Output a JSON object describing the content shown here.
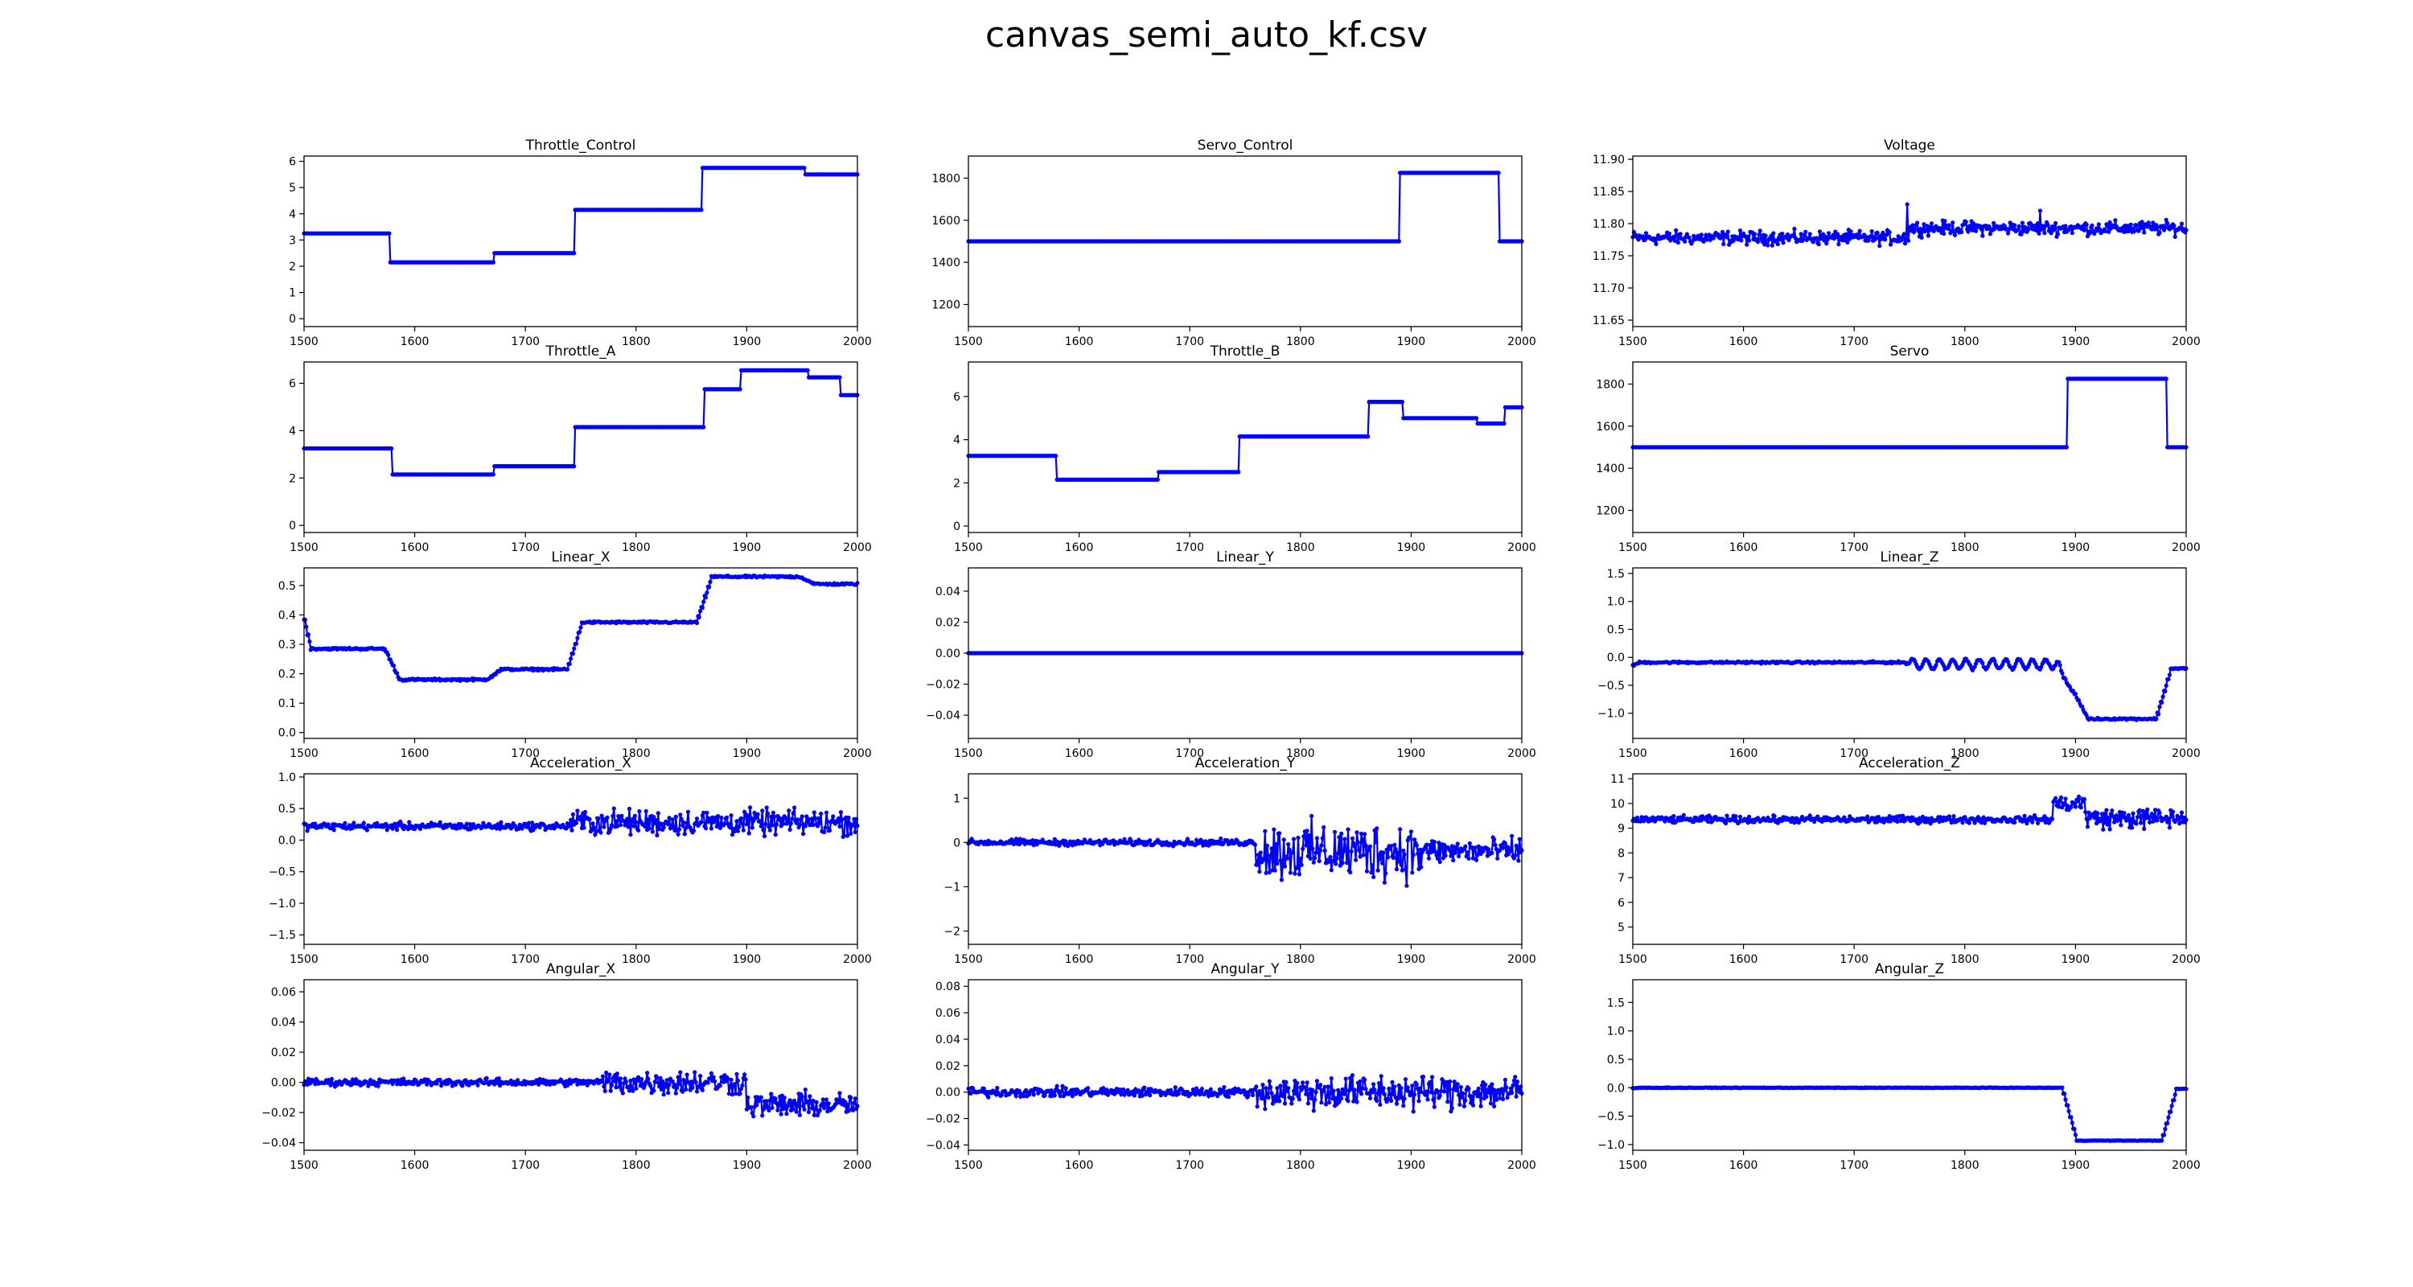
{
  "figure": {
    "title": "canvas_semi_auto_kf.csv"
  },
  "series_color": "#0000ff",
  "chart_data": [
    {
      "type": "line",
      "title": "Throttle_Control",
      "xlim": [
        1500,
        2000
      ],
      "ylim": [
        -0.3,
        6.2
      ],
      "xticks": [
        1500,
        1600,
        1700,
        1800,
        1900,
        2000
      ],
      "yticks": [
        0,
        1,
        2,
        3,
        4,
        5,
        6
      ],
      "ytick_labels": [
        "0",
        "1",
        "2",
        "3",
        "4",
        "5",
        "6"
      ],
      "segments": [
        [
          1500,
          1578,
          3.25
        ],
        [
          1578,
          1672,
          2.15
        ],
        [
          1672,
          1745,
          2.5
        ],
        [
          1745,
          1860,
          4.15
        ],
        [
          1860,
          1953,
          5.75
        ],
        [
          1953,
          2000,
          5.5
        ]
      ],
      "noise": 0,
      "kind": "step"
    },
    {
      "type": "line",
      "title": "Servo_Control",
      "xlim": [
        1500,
        2000
      ],
      "ylim": [
        1095,
        1905
      ],
      "xticks": [
        1500,
        1600,
        1700,
        1800,
        1900,
        2000
      ],
      "yticks": [
        1200,
        1400,
        1600,
        1800
      ],
      "ytick_labels": [
        "1200",
        "1400",
        "1600",
        "1800"
      ],
      "segments": [
        [
          1500,
          1890,
          1500
        ],
        [
          1890,
          1980,
          1825
        ],
        [
          1980,
          2000,
          1500
        ]
      ],
      "noise": 0,
      "kind": "step"
    },
    {
      "type": "line",
      "title": "Voltage",
      "xlim": [
        1500,
        2000
      ],
      "ylim": [
        11.64,
        11.905
      ],
      "xticks": [
        1500,
        1600,
        1700,
        1800,
        1900,
        2000
      ],
      "yticks": [
        11.65,
        11.7,
        11.75,
        11.8,
        11.85,
        11.9
      ],
      "ytick_labels": [
        "11.65",
        "11.70",
        "11.75",
        "11.80",
        "11.85",
        "11.90"
      ],
      "segments": [
        [
          1500,
          1750,
          11.778
        ],
        [
          1750,
          2000,
          11.793
        ]
      ],
      "noise": 0.009,
      "spikes": [
        [
          1748,
          11.83
        ],
        [
          1868,
          11.82
        ]
      ],
      "kind": "noisy"
    },
    {
      "type": "line",
      "title": "Throttle_A",
      "xlim": [
        1500,
        2000
      ],
      "ylim": [
        -0.3,
        6.9
      ],
      "xticks": [
        1500,
        1600,
        1700,
        1800,
        1900,
        2000
      ],
      "yticks": [
        0,
        2,
        4,
        6
      ],
      "ytick_labels": [
        "0",
        "2",
        "4",
        "6"
      ],
      "segments": [
        [
          1500,
          1580,
          3.25
        ],
        [
          1580,
          1672,
          2.15
        ],
        [
          1672,
          1745,
          2.5
        ],
        [
          1745,
          1862,
          4.15
        ],
        [
          1862,
          1895,
          5.75
        ],
        [
          1895,
          1956,
          6.55
        ],
        [
          1956,
          1985,
          6.25
        ],
        [
          1985,
          2000,
          5.5
        ]
      ],
      "noise": 0,
      "kind": "step"
    },
    {
      "type": "line",
      "title": "Throttle_B",
      "xlim": [
        1500,
        2000
      ],
      "ylim": [
        -0.3,
        7.6
      ],
      "xticks": [
        1500,
        1600,
        1700,
        1800,
        1900,
        2000
      ],
      "yticks": [
        0,
        2,
        4,
        6
      ],
      "ytick_labels": [
        "0",
        "2",
        "4",
        "6"
      ],
      "segments": [
        [
          1500,
          1580,
          3.25
        ],
        [
          1580,
          1672,
          2.15
        ],
        [
          1672,
          1745,
          2.5
        ],
        [
          1745,
          1862,
          4.15
        ],
        [
          1862,
          1893,
          5.75
        ],
        [
          1893,
          1960,
          5.0
        ],
        [
          1960,
          1985,
          4.75
        ],
        [
          1985,
          2000,
          5.5
        ]
      ],
      "noise": 0,
      "kind": "step"
    },
    {
      "type": "line",
      "title": "Servo",
      "xlim": [
        1500,
        2000
      ],
      "ylim": [
        1095,
        1905
      ],
      "xticks": [
        1500,
        1600,
        1700,
        1800,
        1900,
        2000
      ],
      "yticks": [
        1200,
        1400,
        1600,
        1800
      ],
      "ytick_labels": [
        "1200",
        "1400",
        "1600",
        "1800"
      ],
      "segments": [
        [
          1500,
          1893,
          1500
        ],
        [
          1893,
          1983,
          1825
        ],
        [
          1983,
          2000,
          1500
        ]
      ],
      "noise": 0,
      "kind": "step"
    },
    {
      "type": "line",
      "title": "Linear_X",
      "xlim": [
        1500,
        2000
      ],
      "ylim": [
        -0.02,
        0.56
      ],
      "xticks": [
        1500,
        1600,
        1700,
        1800,
        1900,
        2000
      ],
      "yticks": [
        0,
        0.1,
        0.2,
        0.3,
        0.4,
        0.5
      ],
      "ytick_labels": [
        "0.0",
        "0.1",
        "0.2",
        "0.3",
        "0.4",
        "0.5"
      ],
      "segments": [
        [
          1500,
          1580,
          0.285
        ],
        [
          1580,
          1672,
          0.18
        ],
        [
          1672,
          1745,
          0.215
        ],
        [
          1745,
          1862,
          0.375
        ],
        [
          1862,
          1955,
          0.53
        ],
        [
          1955,
          2000,
          0.505
        ]
      ],
      "noise": 0.003,
      "kind": "smooth"
    },
    {
      "type": "line",
      "title": "Linear_Y",
      "xlim": [
        1500,
        2000
      ],
      "ylim": [
        -0.055,
        0.055
      ],
      "xticks": [
        1500,
        1600,
        1700,
        1800,
        1900,
        2000
      ],
      "yticks": [
        -0.04,
        -0.02,
        0,
        0.02,
        0.04
      ],
      "ytick_labels": [
        "−0.04",
        "−0.02",
        "0.00",
        "0.02",
        "0.04"
      ],
      "segments": [
        [
          1500,
          2000,
          0
        ]
      ],
      "noise": 0,
      "kind": "step"
    },
    {
      "type": "line",
      "title": "Linear_Z",
      "xlim": [
        1500,
        2000
      ],
      "ylim": [
        -1.45,
        1.6
      ],
      "xticks": [
        1500,
        1600,
        1700,
        1800,
        1900,
        2000
      ],
      "yticks": [
        -1.0,
        -0.5,
        0,
        0.5,
        1.0,
        1.5
      ],
      "ytick_labels": [
        "−1.0",
        "−0.5",
        "0.0",
        "0.5",
        "1.0",
        "1.5"
      ],
      "segments": [
        [
          1500,
          1750,
          -0.09
        ],
        [
          1750,
          1890,
          -0.12
        ],
        [
          1890,
          1905,
          -0.6
        ],
        [
          1905,
          1980,
          -1.1
        ],
        [
          1980,
          2000,
          -0.2
        ]
      ],
      "noise": 0.015,
      "wave": [
        1750,
        1890,
        0.09,
        12
      ],
      "kind": "smooth"
    },
    {
      "type": "line",
      "title": "Acceleration_X",
      "xlim": [
        1500,
        2000
      ],
      "ylim": [
        -1.65,
        1.05
      ],
      "xticks": [
        1500,
        1600,
        1700,
        1800,
        1900,
        2000
      ],
      "yticks": [
        -1.5,
        -1.0,
        -0.5,
        0,
        0.5,
        1.0
      ],
      "ytick_labels": [
        "−1.5",
        "−1.0",
        "−0.5",
        "0.0",
        "0.5",
        "1.0"
      ],
      "segments": [
        [
          1500,
          1740,
          0.22
        ],
        [
          1740,
          2000,
          0.28
        ]
      ],
      "noise": 0.05,
      "noise2": [
        1740,
        2000,
        0.17
      ],
      "kind": "noisy"
    },
    {
      "type": "line",
      "title": "Acceleration_Y",
      "xlim": [
        1500,
        2000
      ],
      "ylim": [
        -2.3,
        1.55
      ],
      "xticks": [
        1500,
        1600,
        1700,
        1800,
        1900,
        2000
      ],
      "yticks": [
        -2,
        -1,
        0,
        1
      ],
      "ytick_labels": [
        "−2",
        "−1",
        "0",
        "1"
      ],
      "segments": [
        [
          1500,
          1760,
          0.0
        ],
        [
          1760,
          2000,
          -0.2
        ]
      ],
      "noise": 0.06,
      "noise2": [
        1760,
        1910,
        0.55
      ],
      "noise3": [
        1910,
        2000,
        0.25
      ],
      "kind": "noisy"
    },
    {
      "type": "line",
      "title": "Acceleration_Z",
      "xlim": [
        1500,
        2000
      ],
      "ylim": [
        4.3,
        11.2
      ],
      "xticks": [
        1500,
        1600,
        1700,
        1800,
        1900,
        2000
      ],
      "yticks": [
        5,
        6,
        7,
        8,
        9,
        10,
        11
      ],
      "ytick_labels": [
        "5",
        "6",
        "7",
        "8",
        "9",
        "10",
        "11"
      ],
      "segments": [
        [
          1500,
          1880,
          9.35
        ],
        [
          1880,
          1910,
          10.0
        ],
        [
          1910,
          2000,
          9.4
        ]
      ],
      "noise": 0.12,
      "noise2": [
        1880,
        2000,
        0.35
      ],
      "kind": "noisy"
    },
    {
      "type": "line",
      "title": "Angular_X",
      "xlim": [
        1500,
        2000
      ],
      "ylim": [
        -0.045,
        0.068
      ],
      "xticks": [
        1500,
        1600,
        1700,
        1800,
        1900,
        2000
      ],
      "yticks": [
        -0.04,
        -0.02,
        0,
        0.02,
        0.04,
        0.06
      ],
      "ytick_labels": [
        "−0.04",
        "−0.02",
        "0.00",
        "0.02",
        "0.04",
        "0.06"
      ],
      "segments": [
        [
          1500,
          1900,
          0.0
        ],
        [
          1900,
          2000,
          -0.015
        ]
      ],
      "noise": 0.002,
      "noise2": [
        1770,
        2000,
        0.007
      ],
      "kind": "noisy"
    },
    {
      "type": "line",
      "title": "Angular_Y",
      "xlim": [
        1500,
        2000
      ],
      "ylim": [
        -0.044,
        0.085
      ],
      "xticks": [
        1500,
        1600,
        1700,
        1800,
        1900,
        2000
      ],
      "yticks": [
        -0.04,
        -0.02,
        0,
        0.02,
        0.04,
        0.06,
        0.08
      ],
      "ytick_labels": [
        "−0.04",
        "−0.02",
        "0.00",
        "0.02",
        "0.04",
        "0.06",
        "0.08"
      ],
      "segments": [
        [
          1500,
          2000,
          0.0
        ]
      ],
      "noise": 0.003,
      "noise2": [
        1760,
        2000,
        0.011
      ],
      "kind": "noisy"
    },
    {
      "type": "line",
      "title": "Angular_Z",
      "xlim": [
        1500,
        2000
      ],
      "ylim": [
        -1.1,
        1.9
      ],
      "xticks": [
        1500,
        1600,
        1700,
        1800,
        1900,
        2000
      ],
      "yticks": [
        -1.0,
        -0.5,
        0,
        0.5,
        1.0,
        1.5
      ],
      "ytick_labels": [
        "−1.0",
        "−0.5",
        "0.0",
        "0.5",
        "1.0",
        "1.5"
      ],
      "segments": [
        [
          1500,
          1895,
          0.0
        ],
        [
          1895,
          1985,
          -0.93
        ],
        [
          1985,
          2000,
          -0.02
        ]
      ],
      "noise": 0.004,
      "kind": "smooth"
    }
  ]
}
